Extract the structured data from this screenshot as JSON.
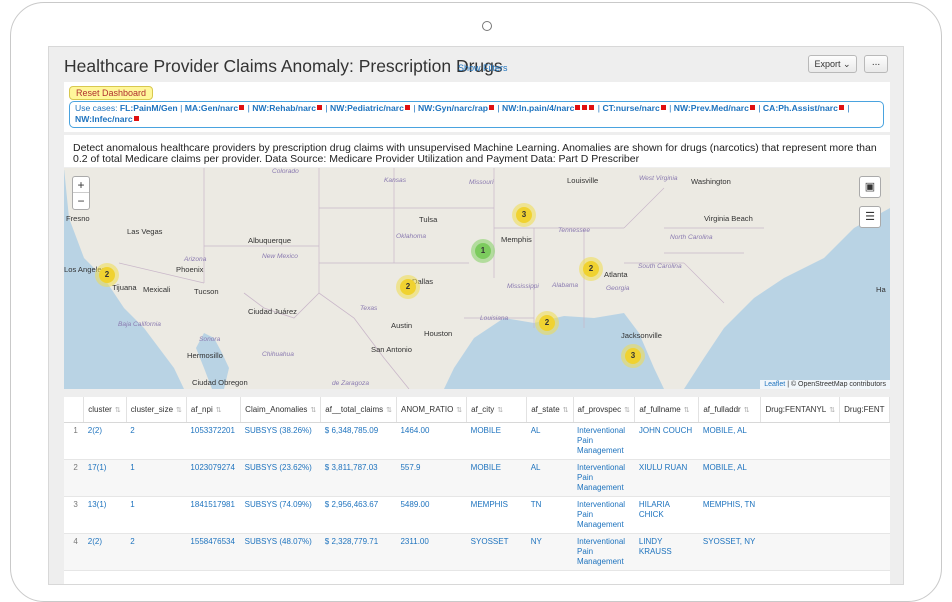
{
  "header": {
    "title": "Healthcare Provider Claims Anomaly: Prescription Drugs",
    "show_filters": "Show Filters",
    "export_label": "Export",
    "more_label": "..."
  },
  "filters": {
    "reset_label": "Reset Dashboard",
    "usecases_prefix": "Use cases:",
    "cases": [
      "FL:PainM/Gen",
      "MA:Gen/narc",
      "NW:Rehab/narc",
      "NW:Pediatric/narc",
      "NW:Gyn/narc/rap",
      "NW:In.pain/4/narc",
      "CT:nurse/narc",
      "NW:Prev.Med/narc",
      "CA:Ph.Assist/narc",
      "NW:Infec/narc"
    ]
  },
  "description": "Detect anomalous healthcare providers by prescription drug claims with unsupervised Machine Learning. Anomalies are shown for drugs (narcotics) that represent more than 0.2 of total Medicare claims per provider. Data Source: Medicare Provider Utilization and Payment Data: Part D Prescriber",
  "map": {
    "cities": [
      "Colorado",
      "Kansas",
      "Missouri",
      "Louisville",
      "West Virginia",
      "Washington",
      "Fresno",
      "Tulsa",
      "Virginia Beach",
      "Las Vegas",
      "Oklahoma",
      "Memphis",
      "Tennessee",
      "Albuquerque",
      "North Carolina",
      "New Mexico",
      "Arizona",
      "Phoenix",
      "Los Angeles",
      "Tijuana",
      "Mexicali",
      "Tucson",
      "Dallas",
      "Atlanta",
      "South Carolina",
      "Mississippi",
      "Alabama",
      "Georgia",
      "Texas",
      "Ciudad Juárez",
      "Louisiana",
      "Baja California",
      "Austin",
      "Houston",
      "Jacksonville",
      "Sonora",
      "Chihuahua",
      "San Antonio",
      "Hermosillo",
      "Ha",
      "Ciudad Obregon",
      "de Zaragoza"
    ],
    "zoom_in": "+",
    "zoom_out": "−",
    "clusters": [
      "2",
      "2",
      "1",
      "3",
      "2",
      "2",
      "3"
    ],
    "attribution_leaflet": "Leaflet",
    "attribution_rest": "| © OpenStreetMap contributors",
    "layer_icon": "layers-icon",
    "fullscreen_icon": "fullscreen-icon"
  },
  "table": {
    "columns": [
      "cluster",
      "cluster_size",
      "af_npi",
      "Claim_Anomalies",
      "af__total_claims",
      "ANOM_RATIO",
      "af_city",
      "af_state",
      "af_provspec",
      "af_fullname",
      "af_fulladdr",
      "Drug:FENTANYL",
      "Drug:FENT"
    ],
    "rows": [
      {
        "n": "1",
        "cluster": "2(2)",
        "size": "2",
        "npi": "1053372201",
        "claims": "SUBSYS (38.26%)",
        "total": "$ 6,348,785.09",
        "ratio": "1464.00",
        "city": "MOBILE",
        "state": "AL",
        "spec": "Interventional Pain Management",
        "name": "JOHN COUCH",
        "addr": "MOBILE, AL"
      },
      {
        "n": "2",
        "cluster": "17(1)",
        "size": "1",
        "npi": "1023079274",
        "claims": "SUBSYS (23.62%)",
        "total": "$ 3,811,787.03",
        "ratio": "557.9",
        "city": "MOBILE",
        "state": "AL",
        "spec": "Interventional Pain Management",
        "name": "XIULU RUAN",
        "addr": "MOBILE, AL"
      },
      {
        "n": "3",
        "cluster": "13(1)",
        "size": "1",
        "npi": "1841517981",
        "claims": "SUBSYS (74.09%)",
        "total": "$ 2,956,463.67",
        "ratio": "5489.00",
        "city": "MEMPHIS",
        "state": "TN",
        "spec": "Interventional Pain Management",
        "name": "HILARIA CHICK",
        "addr": "MEMPHIS, TN"
      },
      {
        "n": "4",
        "cluster": "2(2)",
        "size": "2",
        "npi": "1558476534",
        "claims": "SUBSYS (48.07%)",
        "total": "$ 2,328,779.71",
        "ratio": "2311.00",
        "city": "SYOSSET",
        "state": "NY",
        "spec": "Interventional Pain Management",
        "name": "LINDY KRAUSS",
        "addr": "SYOSSET, NY"
      }
    ]
  }
}
